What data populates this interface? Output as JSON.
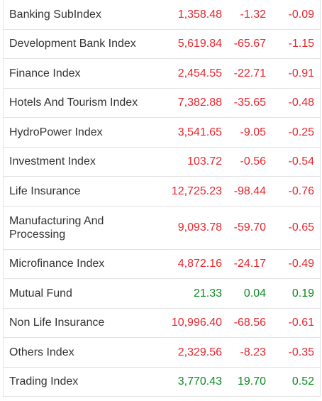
{
  "colors": {
    "negative": "#e8252c",
    "positive": "#0b8a1f",
    "text": "#333333",
    "border": "#e2e2e2"
  },
  "rows": [
    {
      "name": "Banking SubIndex",
      "value": "1,358.48",
      "change": "-1.32",
      "percent": "-0.09",
      "direction": "negative"
    },
    {
      "name": "Development Bank Index",
      "value": "5,619.84",
      "change": "-65.67",
      "percent": "-1.15",
      "direction": "negative"
    },
    {
      "name": "Finance Index",
      "value": "2,454.55",
      "change": "-22.71",
      "percent": "-0.91",
      "direction": "negative"
    },
    {
      "name": "Hotels And Tourism Index",
      "value": "7,382.88",
      "change": "-35.65",
      "percent": "-0.48",
      "direction": "negative"
    },
    {
      "name": "HydroPower Index",
      "value": "3,541.65",
      "change": "-9.05",
      "percent": "-0.25",
      "direction": "negative"
    },
    {
      "name": "Investment Index",
      "value": "103.72",
      "change": "-0.56",
      "percent": "-0.54",
      "direction": "negative"
    },
    {
      "name": "Life Insurance",
      "value": "12,725.23",
      "change": "-98.44",
      "percent": "-0.76",
      "direction": "negative"
    },
    {
      "name": "Manufacturing And Processing",
      "value": "9,093.78",
      "change": "-59.70",
      "percent": "-0.65",
      "direction": "negative"
    },
    {
      "name": "Microfinance Index",
      "value": "4,872.16",
      "change": "-24.17",
      "percent": "-0.49",
      "direction": "negative"
    },
    {
      "name": "Mutual Fund",
      "value": "21.33",
      "change": "0.04",
      "percent": "0.19",
      "direction": "positive"
    },
    {
      "name": "Non Life Insurance",
      "value": "10,996.40",
      "change": "-68.56",
      "percent": "-0.61",
      "direction": "negative"
    },
    {
      "name": "Others Index",
      "value": "2,329.56",
      "change": "-8.23",
      "percent": "-0.35",
      "direction": "negative"
    },
    {
      "name": "Trading Index",
      "value": "3,770.43",
      "change": "19.70",
      "percent": "0.52",
      "direction": "positive"
    }
  ]
}
